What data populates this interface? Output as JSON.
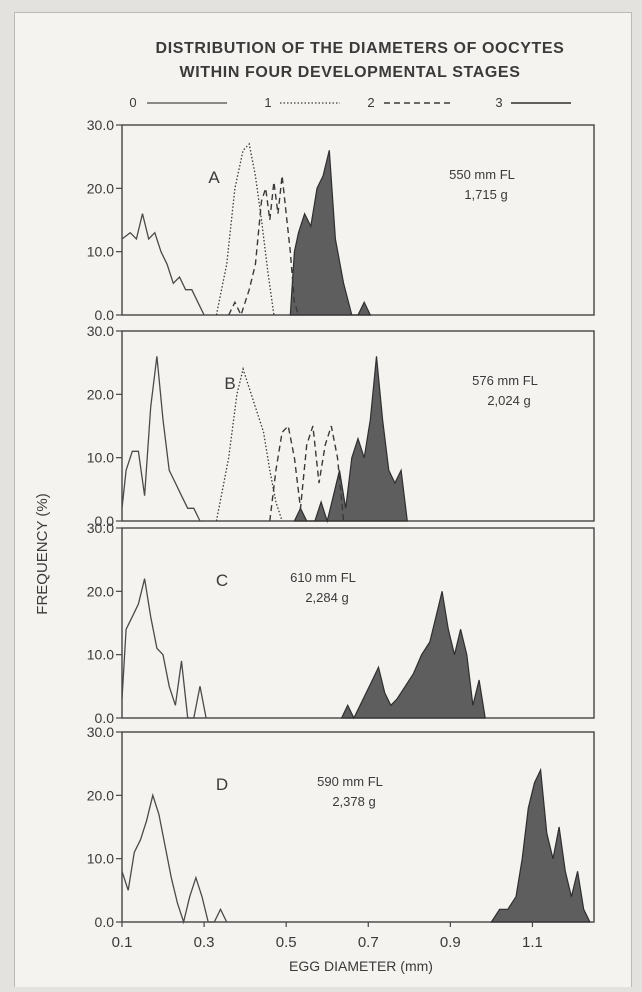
{
  "chart_data": {
    "type": "area",
    "title": "DISTRIBUTION OF THE DIAMETERS OF OOCYTES WITHIN FOUR DEVELOPMENTAL STAGES",
    "title_lines": [
      "DISTRIBUTION OF THE DIAMETERS OF OOCYTES",
      "WITHIN FOUR DEVELOPMENTAL STAGES"
    ],
    "xlabel": "EGG DIAMETER (mm)",
    "ylabel": "FREQUENCY (%)",
    "xlim": [
      0.1,
      1.25
    ],
    "ylim": [
      0,
      30
    ],
    "x_ticks": [
      0.1,
      0.3,
      0.5,
      0.7,
      0.9,
      1.1
    ],
    "x_tick_labels": [
      "0.1",
      "0.3",
      "0.5",
      "0.7",
      "0.9",
      "1.1"
    ],
    "y_ticks": [
      0,
      10,
      20,
      30
    ],
    "y_tick_labels": [
      "0.0",
      "10.0",
      "20.0",
      "30.0"
    ],
    "grid": false,
    "legend_position": "top",
    "legend": [
      {
        "label": "0",
        "style": "solid-thin"
      },
      {
        "label": "1",
        "style": "dotted"
      },
      {
        "label": "2",
        "style": "dashed"
      },
      {
        "label": "3",
        "style": "filled"
      }
    ],
    "panels": [
      {
        "letter": "A",
        "annotation": [
          "550 mm FL",
          "1,715 g"
        ],
        "series": [
          {
            "stage": "0",
            "points": [
              [
                0.1,
                12
              ],
              [
                0.12,
                13
              ],
              [
                0.135,
                12
              ],
              [
                0.15,
                16
              ],
              [
                0.165,
                12
              ],
              [
                0.18,
                13
              ],
              [
                0.195,
                10
              ],
              [
                0.21,
                8
              ],
              [
                0.225,
                5
              ],
              [
                0.24,
                6
              ],
              [
                0.255,
                4
              ],
              [
                0.27,
                4
              ],
              [
                0.285,
                2
              ],
              [
                0.3,
                0
              ]
            ]
          },
          {
            "stage": "1",
            "points": [
              [
                0.33,
                0
              ],
              [
                0.355,
                8
              ],
              [
                0.375,
                20
              ],
              [
                0.395,
                26
              ],
              [
                0.41,
                27
              ],
              [
                0.425,
                22
              ],
              [
                0.44,
                15
              ],
              [
                0.455,
                7
              ],
              [
                0.47,
                0
              ]
            ]
          },
          {
            "stage": "2",
            "points": [
              [
                0.36,
                0
              ],
              [
                0.375,
                2
              ],
              [
                0.39,
                0
              ],
              [
                0.41,
                4
              ],
              [
                0.425,
                8
              ],
              [
                0.44,
                18
              ],
              [
                0.45,
                20
              ],
              [
                0.46,
                15
              ],
              [
                0.47,
                21
              ],
              [
                0.48,
                16
              ],
              [
                0.49,
                22
              ],
              [
                0.5,
                16
              ],
              [
                0.51,
                10
              ],
              [
                0.52,
                2
              ],
              [
                0.53,
                0
              ]
            ]
          },
          {
            "stage": "3",
            "points": [
              [
                0.51,
                0
              ],
              [
                0.52,
                10
              ],
              [
                0.53,
                13
              ],
              [
                0.545,
                16
              ],
              [
                0.56,
                14
              ],
              [
                0.575,
                20
              ],
              [
                0.59,
                22
              ],
              [
                0.605,
                26
              ],
              [
                0.62,
                12
              ],
              [
                0.64,
                5
              ],
              [
                0.66,
                0
              ],
              [
                0.675,
                0
              ],
              [
                0.69,
                2
              ],
              [
                0.705,
                0
              ]
            ]
          }
        ]
      },
      {
        "letter": "B",
        "annotation": [
          "576 mm FL",
          "2,024 g"
        ],
        "series": [
          {
            "stage": "0",
            "points": [
              [
                0.1,
                2
              ],
              [
                0.11,
                8
              ],
              [
                0.125,
                11
              ],
              [
                0.14,
                11
              ],
              [
                0.155,
                4
              ],
              [
                0.17,
                18
              ],
              [
                0.185,
                26
              ],
              [
                0.2,
                16
              ],
              [
                0.215,
                8
              ],
              [
                0.23,
                6
              ],
              [
                0.245,
                4
              ],
              [
                0.26,
                2
              ],
              [
                0.275,
                2
              ],
              [
                0.29,
                0
              ]
            ]
          },
          {
            "stage": "1",
            "points": [
              [
                0.33,
                0
              ],
              [
                0.345,
                5
              ],
              [
                0.36,
                10
              ],
              [
                0.38,
                20
              ],
              [
                0.395,
                24
              ],
              [
                0.41,
                21
              ],
              [
                0.425,
                18
              ],
              [
                0.445,
                14
              ],
              [
                0.46,
                8
              ],
              [
                0.475,
                3
              ],
              [
                0.49,
                0
              ]
            ]
          },
          {
            "stage": "2",
            "points": [
              [
                0.46,
                0
              ],
              [
                0.475,
                8
              ],
              [
                0.49,
                14
              ],
              [
                0.505,
                15
              ],
              [
                0.52,
                10
              ],
              [
                0.535,
                2
              ],
              [
                0.55,
                12
              ],
              [
                0.565,
                15
              ],
              [
                0.58,
                6
              ],
              [
                0.595,
                12
              ],
              [
                0.61,
                15
              ],
              [
                0.625,
                10
              ],
              [
                0.64,
                0
              ]
            ]
          },
          {
            "stage": "3",
            "points": [
              [
                0.52,
                0
              ],
              [
                0.535,
                2
              ],
              [
                0.55,
                0
              ],
              [
                0.57,
                0
              ],
              [
                0.585,
                3
              ],
              [
                0.6,
                0
              ],
              [
                0.615,
                4
              ],
              [
                0.63,
                8
              ],
              [
                0.645,
                2
              ],
              [
                0.66,
                10
              ],
              [
                0.675,
                13
              ],
              [
                0.69,
                10
              ],
              [
                0.705,
                16
              ],
              [
                0.72,
                26
              ],
              [
                0.735,
                16
              ],
              [
                0.75,
                8
              ],
              [
                0.765,
                6
              ],
              [
                0.78,
                8
              ],
              [
                0.795,
                0
              ]
            ]
          }
        ]
      },
      {
        "letter": "C",
        "annotation": [
          "610 mm FL",
          "2,284 g"
        ],
        "series": [
          {
            "stage": "0",
            "points": [
              [
                0.1,
                3
              ],
              [
                0.11,
                14
              ],
              [
                0.125,
                16
              ],
              [
                0.14,
                18
              ],
              [
                0.155,
                22
              ],
              [
                0.17,
                16
              ],
              [
                0.185,
                11
              ],
              [
                0.2,
                10
              ],
              [
                0.215,
                5
              ],
              [
                0.23,
                2
              ],
              [
                0.245,
                9
              ],
              [
                0.26,
                0
              ],
              [
                0.275,
                0
              ],
              [
                0.29,
                5
              ],
              [
                0.305,
                0
              ]
            ]
          },
          {
            "stage": "3",
            "points": [
              [
                0.635,
                0
              ],
              [
                0.65,
                2
              ],
              [
                0.665,
                0
              ],
              [
                0.68,
                2
              ],
              [
                0.695,
                4
              ],
              [
                0.71,
                6
              ],
              [
                0.725,
                8
              ],
              [
                0.74,
                4
              ],
              [
                0.755,
                2
              ],
              [
                0.77,
                3
              ],
              [
                0.79,
                5
              ],
              [
                0.81,
                7
              ],
              [
                0.83,
                10
              ],
              [
                0.85,
                12
              ],
              [
                0.865,
                16
              ],
              [
                0.88,
                20
              ],
              [
                0.895,
                14
              ],
              [
                0.91,
                10
              ],
              [
                0.925,
                14
              ],
              [
                0.94,
                10
              ],
              [
                0.955,
                2
              ],
              [
                0.97,
                6
              ],
              [
                0.985,
                0
              ]
            ]
          }
        ]
      },
      {
        "letter": "D",
        "annotation": [
          "590 mm FL",
          "2,378 g"
        ],
        "series": [
          {
            "stage": "0",
            "points": [
              [
                0.1,
                8
              ],
              [
                0.115,
                5
              ],
              [
                0.13,
                11
              ],
              [
                0.145,
                13
              ],
              [
                0.16,
                16
              ],
              [
                0.175,
                20
              ],
              [
                0.19,
                17
              ],
              [
                0.205,
                12
              ],
              [
                0.22,
                7
              ],
              [
                0.235,
                3
              ],
              [
                0.25,
                0
              ],
              [
                0.265,
                4
              ],
              [
                0.28,
                7
              ],
              [
                0.295,
                4
              ],
              [
                0.31,
                0
              ],
              [
                0.325,
                0
              ],
              [
                0.34,
                2
              ],
              [
                0.355,
                0
              ]
            ]
          },
          {
            "stage": "3",
            "points": [
              [
                1.0,
                0
              ],
              [
                1.02,
                2
              ],
              [
                1.04,
                2
              ],
              [
                1.06,
                4
              ],
              [
                1.075,
                10
              ],
              [
                1.09,
                18
              ],
              [
                1.105,
                22
              ],
              [
                1.12,
                24
              ],
              [
                1.135,
                14
              ],
              [
                1.15,
                10
              ],
              [
                1.165,
                15
              ],
              [
                1.18,
                8
              ],
              [
                1.195,
                4
              ],
              [
                1.21,
                8
              ],
              [
                1.225,
                2
              ],
              [
                1.24,
                0
              ]
            ]
          }
        ]
      }
    ]
  }
}
